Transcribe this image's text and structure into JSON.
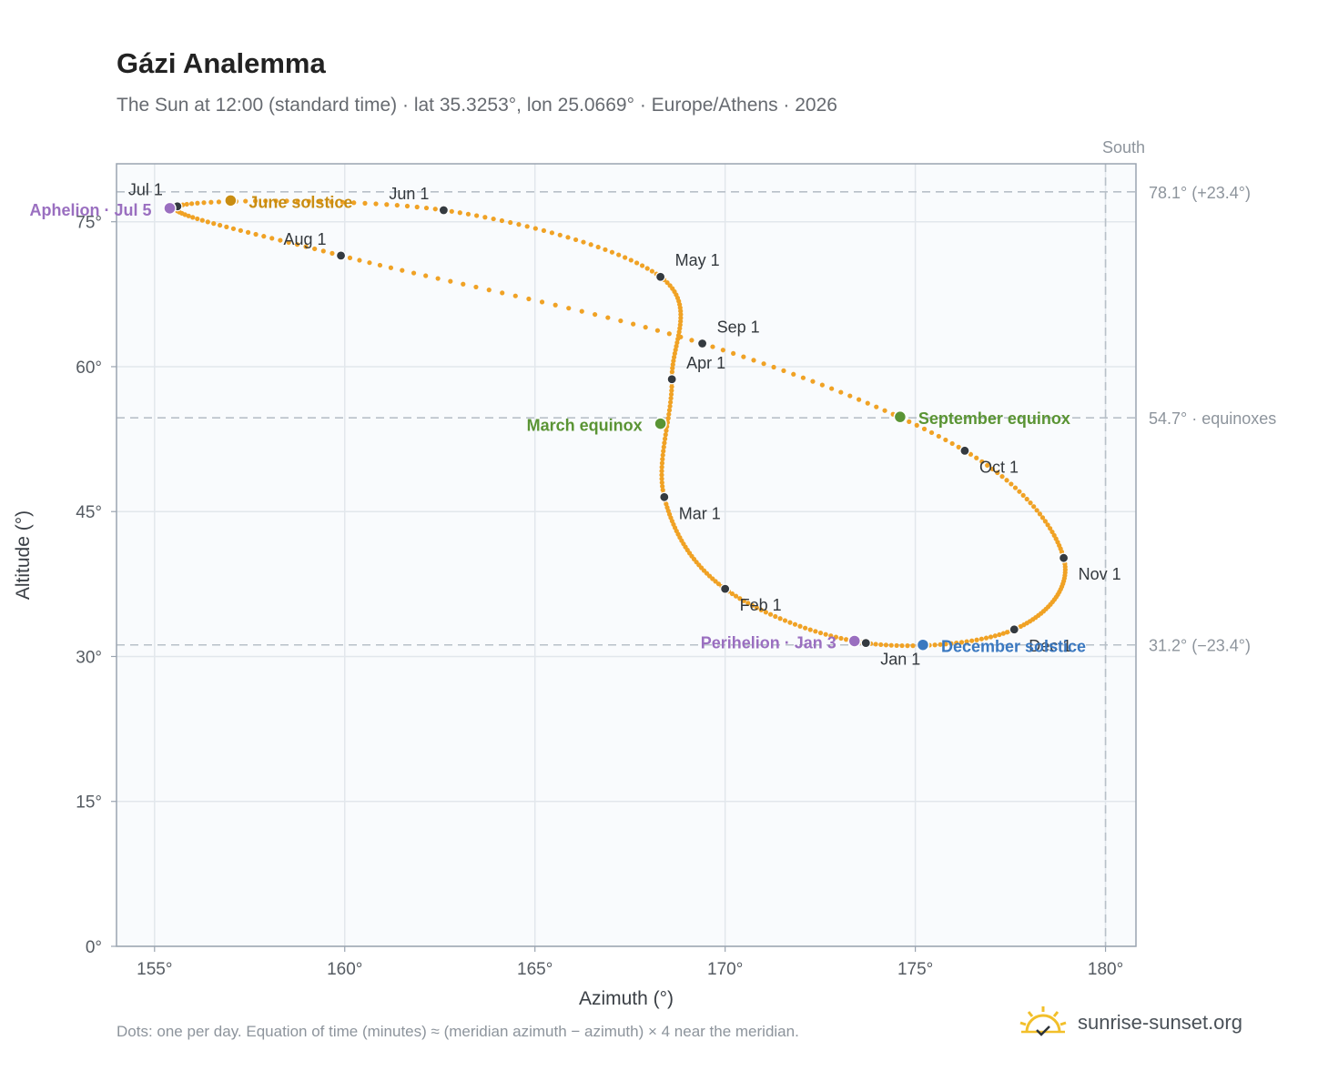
{
  "header": {
    "title": "Gázi Analemma",
    "subtitle": "The Sun at 12:00 (standard time) · lat 35.3253°, lon 25.0669° · Europe/Athens · 2026"
  },
  "footer": {
    "note": "Dots: one per day. Equation of time (minutes) ≈ (meridian azimuth − azimuth) × 4 near the meridian.",
    "brand": "sunrise-sunset.org"
  },
  "colors": {
    "path": "#f0a225",
    "month_dot": "#343a40",
    "equinox": "#5a9434",
    "june_solstice": "#c98d12",
    "december_solstice": "#3a78c0",
    "apsis": "#9a6fc0",
    "reference_line": "#b8c0c8",
    "grid": "#e2e7ec",
    "plot_bg": "#f9fbfd",
    "frame": "#9aa4b0",
    "tick_text": "#555b62",
    "brand_sun": "#f2bf2a"
  },
  "chart_data": {
    "type": "scatter",
    "xlabel": "Azimuth (°)",
    "ylabel": "Altitude (°)",
    "xlim": [
      154,
      180.8
    ],
    "ylim": [
      0,
      81
    ],
    "x_ticks": [
      155,
      160,
      165,
      170,
      175,
      180
    ],
    "y_ticks": [
      0,
      15,
      30,
      45,
      60,
      75
    ],
    "x_tick_suffix": "°",
    "y_tick_suffix": "°",
    "grid": true,
    "south_line": {
      "azimuth": 180,
      "label": "South"
    },
    "reference_lines": [
      {
        "altitude": 78.1,
        "label": "78.1° (+23.4°)"
      },
      {
        "altitude": 54.7,
        "label": "54.7° · equinoxes"
      },
      {
        "altitude": 31.2,
        "label": "31.2° (−23.4°)"
      }
    ],
    "month_markers": [
      {
        "label": "Jan 1",
        "azimuth": 173.7,
        "altitude": 31.4
      },
      {
        "label": "Feb 1",
        "azimuth": 170.0,
        "altitude": 37.0
      },
      {
        "label": "Mar 1",
        "azimuth": 168.4,
        "altitude": 46.5
      },
      {
        "label": "Apr 1",
        "azimuth": 168.6,
        "altitude": 58.7
      },
      {
        "label": "May 1",
        "azimuth": 168.3,
        "altitude": 69.3
      },
      {
        "label": "Jun 1",
        "azimuth": 162.6,
        "altitude": 76.2
      },
      {
        "label": "Jul 1",
        "azimuth": 155.6,
        "altitude": 76.6
      },
      {
        "label": "Aug 1",
        "azimuth": 159.9,
        "altitude": 71.5
      },
      {
        "label": "Sep 1",
        "azimuth": 169.4,
        "altitude": 62.4
      },
      {
        "label": "Oct 1",
        "azimuth": 176.3,
        "altitude": 51.3
      },
      {
        "label": "Nov 1",
        "azimuth": 178.9,
        "altitude": 40.2
      },
      {
        "label": "Dec 1",
        "azimuth": 177.6,
        "altitude": 32.8
      }
    ],
    "events": [
      {
        "label": "March equinox",
        "azimuth": 168.3,
        "altitude": 54.1,
        "kind": "equinox"
      },
      {
        "label": "June solstice",
        "azimuth": 157.0,
        "altitude": 77.2,
        "kind": "june_solstice"
      },
      {
        "label": "September equinox",
        "azimuth": 174.6,
        "altitude": 54.8,
        "kind": "equinox"
      },
      {
        "label": "December solstice",
        "azimuth": 175.2,
        "altitude": 31.2,
        "kind": "december_solstice"
      },
      {
        "label": "Perihelion · Jan 3",
        "azimuth": 173.4,
        "altitude": 31.6,
        "kind": "apsis"
      },
      {
        "label": "Aphelion · Jul 5",
        "azimuth": 155.4,
        "altitude": 76.4,
        "kind": "apsis"
      }
    ]
  }
}
